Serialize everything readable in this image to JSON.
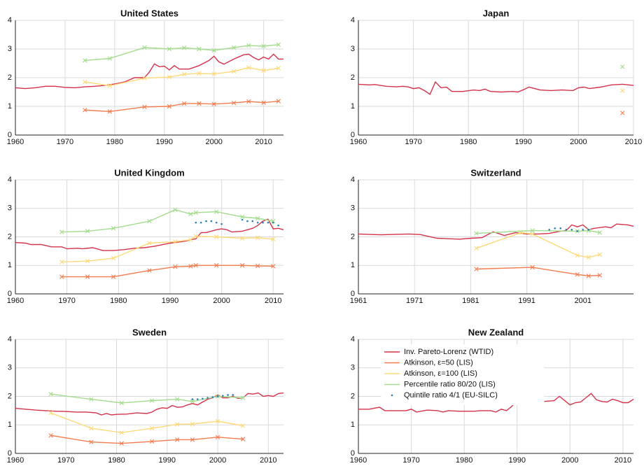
{
  "chart_data": [
    {
      "type": "line",
      "title": "United States",
      "xlim": [
        1960,
        2014
      ],
      "ylim": [
        0,
        4
      ],
      "xticks": [
        1960,
        1970,
        1980,
        1990,
        2000,
        2010
      ],
      "yticks": [
        0,
        1,
        2,
        3,
        4
      ],
      "grid": true,
      "series": [
        {
          "color": "#d4324b",
          "marker": "none",
          "x": [
            1960,
            1962,
            1964,
            1966,
            1968,
            1970,
            1972,
            1974,
            1976,
            1978,
            1980,
            1982,
            1984,
            1986,
            1987,
            1988,
            1989,
            1990,
            1991,
            1992,
            1993,
            1995,
            1997,
            1999,
            2000,
            2001,
            2002,
            2004,
            2006,
            2007,
            2008,
            2009,
            2010,
            2011,
            2012,
            2013,
            2014
          ],
          "values": [
            1.65,
            1.62,
            1.65,
            1.7,
            1.7,
            1.66,
            1.65,
            1.68,
            1.7,
            1.73,
            1.78,
            1.85,
            2.0,
            2.0,
            2.2,
            2.48,
            2.38,
            2.4,
            2.27,
            2.42,
            2.3,
            2.3,
            2.42,
            2.6,
            2.75,
            2.55,
            2.47,
            2.65,
            2.8,
            2.82,
            2.7,
            2.62,
            2.72,
            2.65,
            2.82,
            2.65,
            2.65
          ]
        },
        {
          "color": "#f27c4e",
          "marker": "x",
          "x": [
            1974,
            1979,
            1986,
            1991,
            1994,
            1997,
            2000,
            2004,
            2007,
            2010,
            2013
          ],
          "values": [
            0.87,
            0.82,
            0.98,
            1.0,
            1.1,
            1.1,
            1.08,
            1.12,
            1.17,
            1.13,
            1.18
          ]
        },
        {
          "color": "#fcd979",
          "marker": "x",
          "x": [
            1974,
            1979,
            1986,
            1991,
            1994,
            1997,
            2000,
            2004,
            2007,
            2010,
            2013
          ],
          "values": [
            1.85,
            1.72,
            1.98,
            2.02,
            2.12,
            2.15,
            2.13,
            2.22,
            2.35,
            2.25,
            2.33
          ]
        },
        {
          "color": "#a3dc8c",
          "marker": "x",
          "x": [
            1974,
            1979,
            1986,
            1991,
            1994,
            1997,
            2000,
            2004,
            2007,
            2010,
            2013
          ],
          "values": [
            2.6,
            2.67,
            3.05,
            3.0,
            3.04,
            3.0,
            2.95,
            3.05,
            3.12,
            3.1,
            3.15
          ]
        }
      ]
    },
    {
      "type": "line",
      "title": "Japan",
      "xlim": [
        1960,
        2010
      ],
      "ylim": [
        0,
        4
      ],
      "xticks": [
        1960,
        1970,
        1980,
        1990,
        2000,
        2010
      ],
      "yticks": [
        0,
        1,
        2,
        3,
        4
      ],
      "grid": true,
      "series": [
        {
          "color": "#d4324b",
          "marker": "none",
          "x": [
            1960,
            1962,
            1963,
            1965,
            1967,
            1968,
            1969,
            1970,
            1971,
            1972,
            1973,
            1974,
            1975,
            1976,
            1977,
            1979,
            1981,
            1982,
            1983,
            1984,
            1986,
            1988,
            1989,
            1990,
            1991,
            1993,
            1995,
            1997,
            1999,
            2000,
            2001,
            2002,
            2004,
            2006,
            2008,
            2010
          ],
          "values": [
            1.77,
            1.75,
            1.76,
            1.7,
            1.68,
            1.7,
            1.68,
            1.62,
            1.65,
            1.55,
            1.42,
            1.85,
            1.65,
            1.67,
            1.52,
            1.52,
            1.57,
            1.55,
            1.6,
            1.52,
            1.5,
            1.52,
            1.5,
            1.58,
            1.67,
            1.57,
            1.55,
            1.57,
            1.55,
            1.65,
            1.67,
            1.62,
            1.67,
            1.75,
            1.77,
            1.73
          ]
        },
        {
          "color": "#f27c4e",
          "marker": "x",
          "x": [
            2008
          ],
          "values": [
            0.77
          ]
        },
        {
          "color": "#fcd979",
          "marker": "x",
          "x": [
            2008
          ],
          "values": [
            1.55
          ]
        },
        {
          "color": "#a3dc8c",
          "marker": "x",
          "x": [
            2008
          ],
          "values": [
            2.38
          ]
        }
      ]
    },
    {
      "type": "line",
      "title": "United Kingdom",
      "xlim": [
        1960,
        2012
      ],
      "ylim": [
        0,
        4
      ],
      "xticks": [
        1960,
        1970,
        1980,
        1990,
        2000,
        2010
      ],
      "yticks": [
        0,
        1,
        2,
        3,
        4
      ],
      "grid": true,
      "series": [
        {
          "color": "#d4324b",
          "marker": "none",
          "x": [
            1960,
            1962,
            1963,
            1965,
            1967,
            1969,
            1970,
            1972,
            1973,
            1975,
            1977,
            1979,
            1981,
            1983,
            1985,
            1987,
            1990,
            1993,
            1994,
            1995,
            1996,
            1997,
            1999,
            2000,
            2001,
            2002,
            2004,
            2006,
            2007,
            2008,
            2009,
            2010,
            2011,
            2012
          ],
          "values": [
            1.8,
            1.78,
            1.73,
            1.73,
            1.65,
            1.65,
            1.58,
            1.6,
            1.58,
            1.62,
            1.52,
            1.52,
            1.55,
            1.6,
            1.62,
            1.67,
            1.78,
            1.85,
            1.9,
            1.93,
            2.15,
            2.15,
            2.25,
            2.28,
            2.25,
            2.17,
            2.2,
            2.3,
            2.4,
            2.55,
            2.62,
            2.28,
            2.3,
            2.25
          ]
        },
        {
          "color": "#f27c4e",
          "marker": "x",
          "x": [
            1969,
            1974,
            1979,
            1986,
            1991,
            1994,
            1995,
            1999,
            2004,
            2007,
            2010
          ],
          "values": [
            0.6,
            0.6,
            0.6,
            0.82,
            0.95,
            0.97,
            1.0,
            1.0,
            1.0,
            0.98,
            0.97
          ]
        },
        {
          "color": "#fcd979",
          "marker": "x",
          "x": [
            1969,
            1974,
            1979,
            1986,
            1991,
            1994,
            1995,
            1999,
            2004,
            2007,
            2010
          ],
          "values": [
            1.12,
            1.15,
            1.25,
            1.78,
            1.83,
            1.9,
            2.02,
            2.0,
            1.95,
            1.97,
            1.92
          ]
        },
        {
          "color": "#a3dc8c",
          "marker": "x",
          "x": [
            1969,
            1974,
            1979,
            1986,
            1991,
            1994,
            1995,
            1999,
            2004,
            2007,
            2010
          ],
          "values": [
            2.17,
            2.2,
            2.3,
            2.55,
            2.95,
            2.8,
            2.85,
            2.88,
            2.7,
            2.65,
            2.55
          ]
        },
        {
          "color": "#2b7fb8",
          "marker": "dot",
          "x": [
            1995,
            1996,
            1997,
            1998,
            1999,
            2000,
            2004,
            2005,
            2006,
            2007,
            2008,
            2009,
            2010,
            2011
          ],
          "values": [
            2.5,
            2.5,
            2.55,
            2.55,
            2.5,
            2.45,
            2.6,
            2.55,
            2.55,
            2.5,
            2.5,
            2.5,
            2.5,
            2.4
          ]
        }
      ]
    },
    {
      "type": "line",
      "title": "Switzerland",
      "xlim": [
        1961,
        2010
      ],
      "ylim": [
        0,
        4
      ],
      "xticks": [
        1961,
        1971,
        1981,
        1991,
        2001
      ],
      "yticks": [
        0,
        1,
        2,
        3,
        4
      ],
      "grid": true,
      "series": [
        {
          "color": "#d4324b",
          "marker": "none",
          "x": [
            1961,
            1965,
            1970,
            1972,
            1975,
            1979,
            1981,
            1983,
            1985,
            1987,
            1989,
            1991,
            1993,
            1995,
            1997,
            1998,
            1999,
            2000,
            2001,
            2002,
            2003,
            2005,
            2006,
            2007,
            2009,
            2010
          ],
          "values": [
            2.1,
            2.07,
            2.1,
            2.08,
            1.95,
            1.92,
            1.95,
            1.97,
            2.18,
            2.05,
            2.15,
            2.1,
            2.1,
            2.12,
            2.2,
            2.22,
            2.42,
            2.35,
            2.42,
            2.25,
            2.3,
            2.35,
            2.32,
            2.45,
            2.42,
            2.37
          ]
        },
        {
          "color": "#f27c4e",
          "marker": "x",
          "x": [
            1982,
            1992,
            2000,
            2002,
            2004
          ],
          "values": [
            0.87,
            0.93,
            0.68,
            0.63,
            0.65
          ]
        },
        {
          "color": "#fcd979",
          "marker": "x",
          "x": [
            1982,
            1990,
            1992,
            2000,
            2002,
            2004
          ],
          "values": [
            1.6,
            2.15,
            2.1,
            1.35,
            1.28,
            1.38
          ]
        },
        {
          "color": "#a3dc8c",
          "marker": "x",
          "x": [
            1982,
            1992,
            2000,
            2002,
            2004
          ],
          "values": [
            2.12,
            2.22,
            2.2,
            2.22,
            2.15
          ]
        },
        {
          "color": "#2b7fb8",
          "marker": "dot",
          "x": [
            1995,
            1996,
            1997,
            1998,
            1999,
            2000,
            2001,
            2002
          ],
          "values": [
            2.25,
            2.3,
            2.3,
            2.25,
            2.25,
            2.2,
            2.25,
            2.25
          ]
        }
      ]
    },
    {
      "type": "line",
      "title": "Sweden",
      "xlim": [
        1960,
        2013
      ],
      "ylim": [
        0,
        4
      ],
      "xticks": [
        1960,
        1970,
        1980,
        1990,
        2000,
        2010
      ],
      "yticks": [
        0,
        1,
        2,
        3,
        4
      ],
      "grid": true,
      "series": [
        {
          "color": "#d4324b",
          "marker": "none",
          "x": [
            1960,
            1962,
            1964,
            1966,
            1968,
            1970,
            1972,
            1974,
            1976,
            1977,
            1978,
            1979,
            1980,
            1982,
            1984,
            1986,
            1987,
            1988,
            1989,
            1990,
            1991,
            1992,
            1993,
            1994,
            1995,
            1996,
            1997,
            1998,
            1999,
            2000,
            2001,
            2002,
            2003,
            2004,
            2005,
            2006,
            2007,
            2008,
            2009,
            2010,
            2011,
            2012,
            2013
          ],
          "values": [
            1.58,
            1.55,
            1.52,
            1.5,
            1.48,
            1.47,
            1.45,
            1.45,
            1.42,
            1.35,
            1.4,
            1.35,
            1.37,
            1.38,
            1.42,
            1.4,
            1.45,
            1.55,
            1.6,
            1.58,
            1.68,
            1.62,
            1.63,
            1.7,
            1.75,
            1.7,
            1.8,
            1.9,
            1.95,
            2.05,
            1.95,
            1.95,
            2.0,
            1.93,
            1.95,
            2.1,
            2.08,
            2.12,
            2.0,
            2.03,
            2.0,
            2.1,
            2.12
          ]
        },
        {
          "color": "#f27c4e",
          "marker": "x",
          "x": [
            1967,
            1975,
            1981,
            1987,
            1992,
            1995,
            2000,
            2005
          ],
          "values": [
            0.63,
            0.4,
            0.35,
            0.42,
            0.48,
            0.48,
            0.57,
            0.5
          ]
        },
        {
          "color": "#fcd979",
          "marker": "x",
          "x": [
            1967,
            1975,
            1981,
            1987,
            1992,
            1995,
            2000,
            2005
          ],
          "values": [
            1.42,
            0.88,
            0.73,
            0.88,
            1.02,
            1.03,
            1.13,
            0.97
          ]
        },
        {
          "color": "#a3dc8c",
          "marker": "x",
          "x": [
            1967,
            1975,
            1981,
            1987,
            1992,
            1995,
            2000,
            2005
          ],
          "values": [
            2.08,
            1.9,
            1.77,
            1.85,
            1.9,
            1.82,
            2.0,
            1.95
          ]
        },
        {
          "color": "#2b7fb8",
          "marker": "dot",
          "x": [
            1995,
            1996,
            1997,
            1998,
            1999,
            2000,
            2001,
            2002,
            2003
          ],
          "values": [
            1.9,
            1.9,
            1.92,
            1.95,
            1.97,
            2.0,
            2.02,
            2.05,
            2.05
          ]
        }
      ]
    },
    {
      "type": "line",
      "title": "New Zealand",
      "xlim": [
        1960,
        2012
      ],
      "ylim": [
        0,
        4
      ],
      "xticks": [
        1960,
        1970,
        1980,
        1990,
        2000,
        2010
      ],
      "yticks": [
        0,
        1,
        2,
        3,
        4
      ],
      "grid": true,
      "series": [
        {
          "color": "#d4324b",
          "marker": "none",
          "x": [
            1960,
            1962,
            1964,
            1965,
            1967,
            1969,
            1970,
            1971,
            1973,
            1975,
            1976,
            1977,
            1979,
            1982,
            1983,
            1985,
            1986,
            1987,
            1988,
            1989,
            1990,
            1991,
            1993,
            1995,
            1997,
            1998,
            1999,
            2000,
            2001,
            2002,
            2003,
            2004,
            2005,
            2006,
            2007,
            2008,
            2009,
            2010,
            2011,
            2012
          ],
          "values": [
            1.55,
            1.55,
            1.62,
            1.5,
            1.5,
            1.5,
            1.55,
            1.45,
            1.52,
            1.5,
            1.45,
            1.5,
            1.48,
            1.48,
            1.5,
            1.5,
            1.45,
            1.55,
            1.5,
            1.65,
            1.88,
            1.78,
            1.8,
            1.82,
            1.85,
            2.0,
            1.85,
            1.7,
            1.78,
            1.8,
            1.95,
            2.1,
            1.88,
            1.82,
            1.8,
            1.9,
            1.85,
            1.78,
            1.78,
            1.9
          ]
        }
      ],
      "legend": [
        {
          "name": "Inv. Pareto-Lorenz (WTID)",
          "color": "#d4324b",
          "marker": "none"
        },
        {
          "name": "Atkinson, ε=50 (LIS)",
          "color": "#f27c4e",
          "marker": "none"
        },
        {
          "name": "Atkinson, ε=100 (LIS)",
          "color": "#fcd979",
          "marker": "none"
        },
        {
          "name": "Percentile ratio 80/20 (LIS)",
          "color": "#a3dc8c",
          "marker": "none"
        },
        {
          "name": "Quintile ratio 4/1 (EU-SILC)",
          "color": "#2b7fb8",
          "marker": "dot"
        }
      ]
    }
  ]
}
